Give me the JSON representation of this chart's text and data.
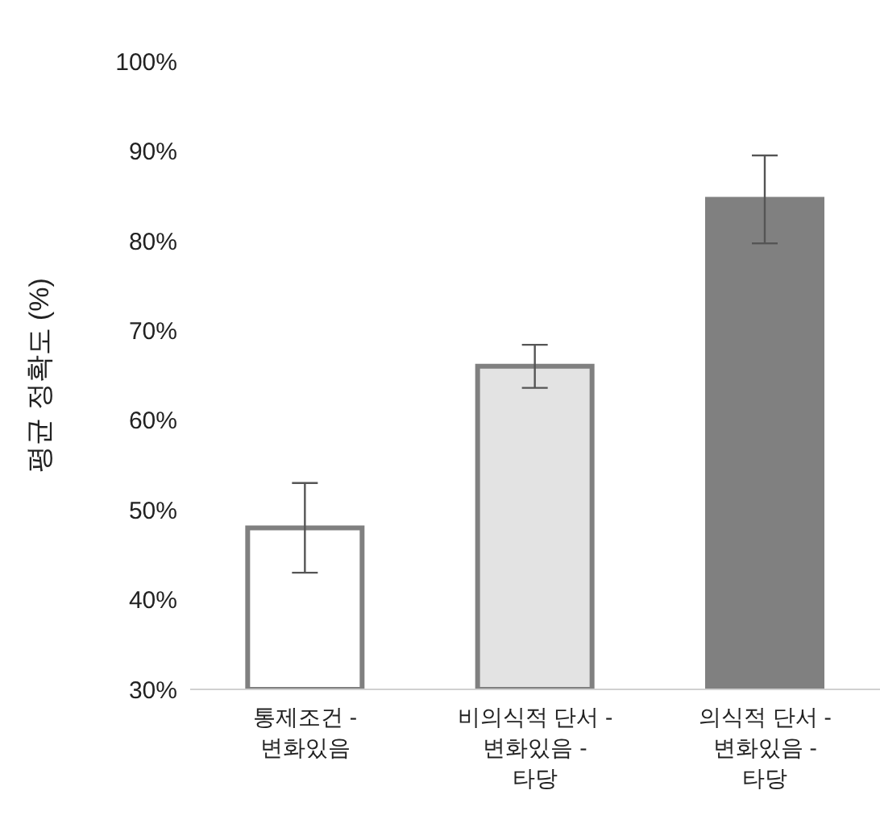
{
  "chart_data": {
    "type": "bar",
    "ylabel": "평균 정확도 (%)",
    "categories": [
      "통제조건 - 변화있음",
      "비의식적 단서 - 변화있음 - 타당",
      "의식적 단서 - 변화있음 - 타당"
    ],
    "values": [
      48,
      66,
      84.6
    ],
    "errors": [
      5,
      2.4,
      4.9
    ],
    "colors": [
      "#ffffff",
      "#e3e3e3",
      "#808080"
    ],
    "ylim": [
      30,
      100
    ],
    "yticks": [
      {
        "value": 30,
        "label": "30%"
      },
      {
        "value": 40,
        "label": "40%"
      },
      {
        "value": 50,
        "label": "50%"
      },
      {
        "value": 60,
        "label": "60%"
      },
      {
        "value": 70,
        "label": "70%"
      },
      {
        "value": 80,
        "label": "80%"
      },
      {
        "value": 90,
        "label": "90%"
      },
      {
        "value": 100,
        "label": "100%"
      }
    ],
    "grid": false,
    "legend": false
  }
}
